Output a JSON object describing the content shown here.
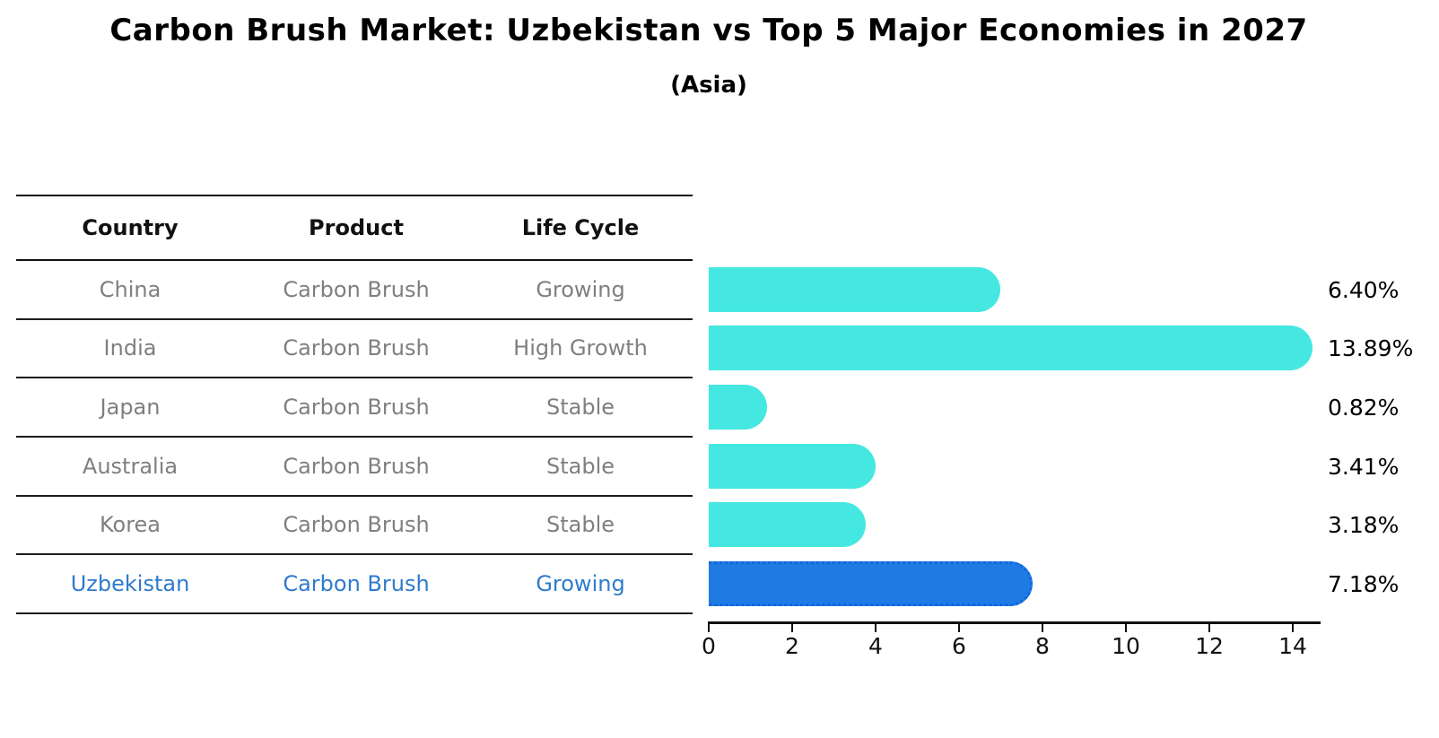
{
  "title": "Carbon Brush Market: Uzbekistan vs Top 5 Major Economies in 2027",
  "subtitle": "(Asia)",
  "table": {
    "headers": [
      "Country",
      "Product",
      "Life Cycle"
    ],
    "rows": [
      {
        "country": "China",
        "product": "Carbon Brush",
        "life_cycle": "Growing",
        "highlight": false
      },
      {
        "country": "India",
        "product": "Carbon Brush",
        "life_cycle": "High Growth",
        "highlight": false
      },
      {
        "country": "Japan",
        "product": "Carbon Brush",
        "life_cycle": "Stable",
        "highlight": false
      },
      {
        "country": "Australia",
        "product": "Carbon Brush",
        "life_cycle": "Stable",
        "highlight": false
      },
      {
        "country": "Korea",
        "product": "Carbon Brush",
        "life_cycle": "Stable",
        "highlight": false
      },
      {
        "country": "Uzbekistan",
        "product": "Carbon Brush",
        "life_cycle": "Growing",
        "highlight": true
      }
    ]
  },
  "chart_data": {
    "type": "bar",
    "orientation": "horizontal",
    "title": "Carbon Brush Market: Uzbekistan vs Top 5 Major Economies in 2027",
    "subtitle": "(Asia)",
    "categories": [
      "China",
      "India",
      "Japan",
      "Australia",
      "Korea",
      "Uzbekistan"
    ],
    "values": [
      6.4,
      13.89,
      0.82,
      3.41,
      3.18,
      7.18
    ],
    "value_labels": [
      "6.40%",
      "13.89%",
      "0.82%",
      "3.41%",
      "3.18%",
      "7.18%"
    ],
    "xlabel": "",
    "ylabel": "",
    "xlim": [
      0,
      14.6
    ],
    "xticks": [
      0,
      2,
      4,
      6,
      8,
      10,
      12,
      14
    ],
    "grid": false,
    "legend": false,
    "highlight_index": 5,
    "colors": {
      "bar": "#45e8e1",
      "highlight_bar": "#1f7be3",
      "highlight_border": "#1266dd",
      "row_text": "#7f7f7f",
      "highlight_text": "#2e7bcd",
      "axis": "#111111"
    }
  }
}
